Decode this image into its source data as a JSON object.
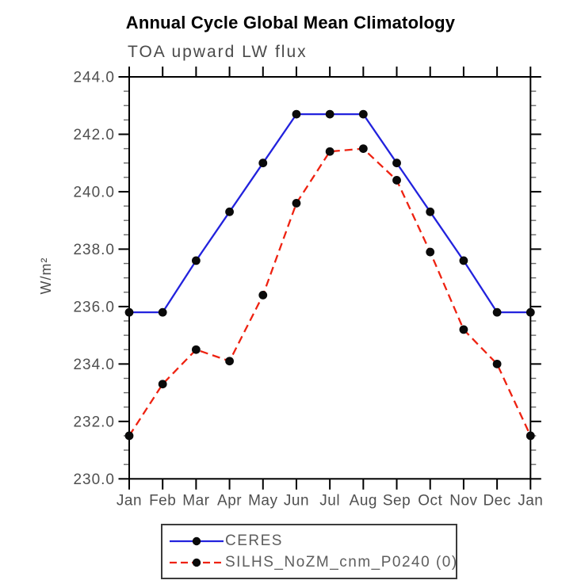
{
  "page": {
    "background": "#ffffff"
  },
  "chart_data": {
    "type": "line",
    "title": "Annual Cycle Global Mean Climatology",
    "subtitle": "TOA upward LW flux",
    "ylabel": "W/m²",
    "xlabel": "",
    "x_tick_labels": [
      "Jan",
      "Feb",
      "Mar",
      "Apr",
      "May",
      "Jun",
      "Jul",
      "Aug",
      "Sep",
      "Oct",
      "Nov",
      "Dec",
      "Jan"
    ],
    "y_tick_labels": [
      "230.0",
      "232.0",
      "234.0",
      "236.0",
      "238.0",
      "240.0",
      "242.0",
      "244.0"
    ],
    "ylim": [
      230.0,
      244.0
    ],
    "ytick_step": 2.0,
    "ytick_minor_step": 0.5,
    "grid": false,
    "legend_position": "bottom-center",
    "axis_color": "#000000",
    "tick_label_color": "#4f4f4f",
    "marker_color": "#0a0a0a",
    "series": [
      {
        "name": "CERES",
        "color": "#2222dd",
        "line_style": "solid",
        "marker": "filled-circle",
        "values": [
          235.8,
          235.8,
          237.6,
          239.3,
          241.0,
          242.7,
          242.7,
          242.7,
          241.0,
          239.3,
          237.6,
          235.8,
          235.8
        ]
      },
      {
        "name": "SILHS_NoZM_cnm_P0240 (0)",
        "color": "#ee2211",
        "line_style": "dashed",
        "marker": "filled-circle",
        "values": [
          231.5,
          233.3,
          234.5,
          234.1,
          236.4,
          239.6,
          241.4,
          241.5,
          240.4,
          237.9,
          235.2,
          234.0,
          231.5
        ]
      }
    ]
  }
}
